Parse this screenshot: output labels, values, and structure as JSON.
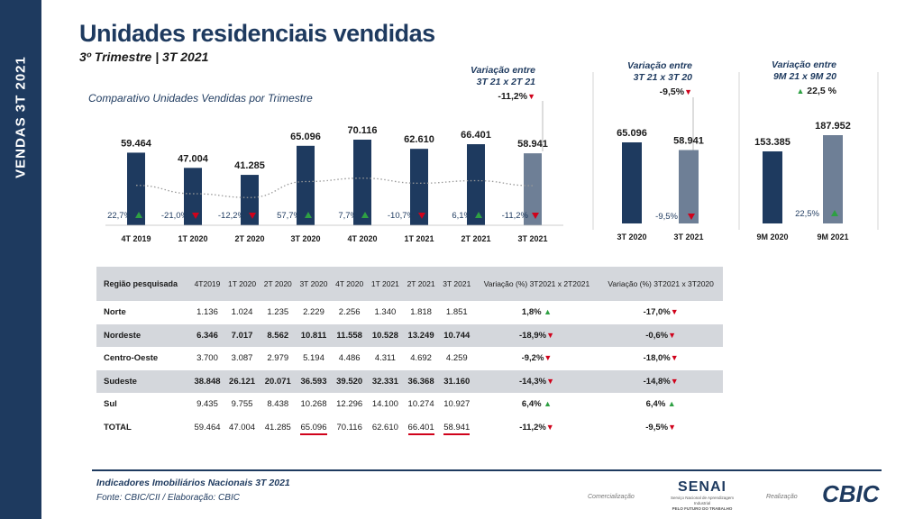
{
  "sidebar": {
    "text": "VENDAS    3T 2021"
  },
  "title": "Unidades residenciais vendidas",
  "subtitle": "3º Trimestre | 3T 2021",
  "comparativo": "Comparativo Unidades Vendidas por Trimestre",
  "var_boxes": [
    {
      "line1": "Variação entre",
      "line2": "3T 21 x 2T 21",
      "value": "-11,2%",
      "dir": "down"
    },
    {
      "line1": "Variação entre",
      "line2": "3T 21 x 3T 20",
      "value": "-9,5%",
      "dir": "down"
    },
    {
      "line1": "Variação entre",
      "line2": "9M 21 x  9M 20",
      "value": "22,5 %",
      "dir": "up"
    }
  ],
  "colors": {
    "navy": "#1e3a5f",
    "slate": "#6e7f96",
    "up": "#2ea043",
    "down": "#d0021b",
    "table_shade": "#d4d7dc"
  },
  "chart_data": [
    {
      "type": "bar",
      "title": "Comparativo Unidades Vendidas por Trimestre",
      "categories": [
        "4T 2019",
        "1T 2020",
        "2T 2020",
        "3T 2020",
        "4T 2020",
        "1T 2021",
        "2T 2021",
        "3T 2021"
      ],
      "values": [
        59464,
        47004,
        41285,
        65096,
        70116,
        62610,
        66401,
        58941
      ],
      "labels": [
        "59.464",
        "47.004",
        "41.285",
        "65.096",
        "70.116",
        "62.610",
        "66.401",
        "58.941"
      ],
      "variations": [
        "22,7%",
        "-21,0%",
        "-12,2%",
        "57,7%",
        "7,7%",
        "-10,7%",
        "6,1%",
        "-11,2%"
      ],
      "variation_dirs": [
        "up",
        "down",
        "down",
        "up",
        "up",
        "down",
        "up",
        "down"
      ],
      "trend_line": "dotted",
      "highlight_last": true
    },
    {
      "type": "bar",
      "categories": [
        "3T 2020",
        "3T 2021"
      ],
      "values": [
        65096,
        58941
      ],
      "labels": [
        "65.096",
        "58.941"
      ],
      "variation": "-9,5%",
      "variation_dir": "down"
    },
    {
      "type": "bar",
      "categories": [
        "9M 2020",
        "9M 2021"
      ],
      "values": [
        153385,
        187952
      ],
      "labels": [
        "153.385",
        "187.952"
      ],
      "variation": "22,5%",
      "variation_dir": "up"
    },
    {
      "type": "table",
      "headers": [
        "Região pesquisada",
        "4T2019",
        "1T 2020",
        "2T 2020",
        "3T 2020",
        "4T 2020",
        "1T 2021",
        "2T 2021",
        "3T 2021",
        "Variação (%) 3T2021 x 2T2021",
        "Variação (%) 3T2021 x 3T2020"
      ],
      "rows": [
        {
          "region": "Norte",
          "cells": [
            "1.136",
            "1.024",
            "1.235",
            "2.229",
            "2.256",
            "1.340",
            "1.818",
            "1.851"
          ],
          "v1": "1,8%",
          "v1_dir": "up",
          "v2": "-17,0%",
          "v2_dir": "down"
        },
        {
          "region": "Nordeste",
          "cells": [
            "6.346",
            "7.017",
            "8.562",
            "10.811",
            "11.558",
            "10.528",
            "13.249",
            "10.744"
          ],
          "v1": "-18,9%",
          "v1_dir": "down",
          "v2": "-0,6%",
          "v2_dir": "down"
        },
        {
          "region": "Centro-Oeste",
          "cells": [
            "3.700",
            "3.087",
            "2.979",
            "5.194",
            "4.486",
            "4.311",
            "4.692",
            "4.259"
          ],
          "v1": "-9,2%",
          "v1_dir": "down",
          "v2": "-18,0%",
          "v2_dir": "down"
        },
        {
          "region": "Sudeste",
          "cells": [
            "38.848",
            "26.121",
            "20.071",
            "36.593",
            "39.520",
            "32.331",
            "36.368",
            "31.160"
          ],
          "v1": "-14,3%",
          "v1_dir": "down",
          "v2": "-14,8%",
          "v2_dir": "down"
        },
        {
          "region": "Sul",
          "cells": [
            "9.435",
            "9.755",
            "8.438",
            "10.268",
            "12.296",
            "14.100",
            "10.274",
            "10.927"
          ],
          "v1": "6,4%",
          "v1_dir": "up",
          "v2": "6,4%",
          "v2_dir": "up"
        },
        {
          "region": "TOTAL",
          "cells": [
            "59.464",
            "47.004",
            "41.285",
            "65.096",
            "70.116",
            "62.610",
            "66.401",
            "58.941"
          ],
          "v1": "-11,2%",
          "v1_dir": "down",
          "v2": "-9,5%",
          "v2_dir": "down"
        }
      ]
    }
  ],
  "footer": {
    "line1": "Indicadores Imobiliários Nacionais 3T 2021",
    "line2": "Fonte: CBIC/CII / Elaboração: CBIC",
    "comercializacao": "Comercialização",
    "realizacao": "Realização",
    "senai_logo": "SENAI",
    "senai_sub1": "Serviço Nacional de Aprendizagem Industrial",
    "senai_sub2": "PELO FUTURO DO TRABALHO",
    "cbic_logo": "CBIC"
  }
}
